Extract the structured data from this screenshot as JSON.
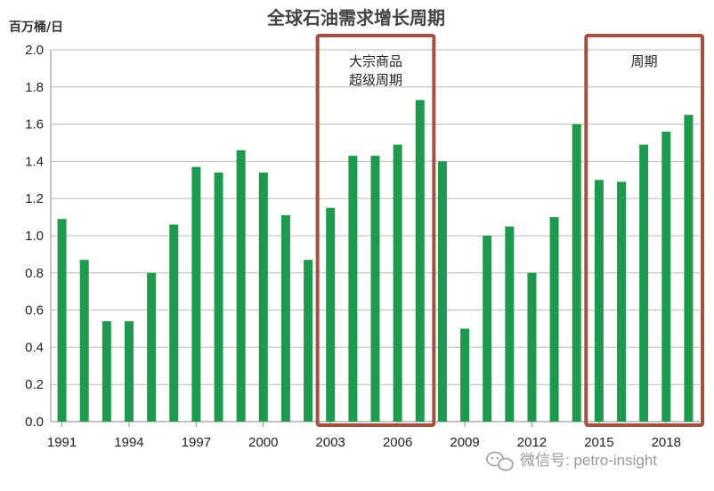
{
  "chart_data": {
    "type": "bar",
    "title": "全球石油需求增长周期",
    "ylabel": "百万桶/日",
    "xlabel": "",
    "ylim": [
      0,
      2.0
    ],
    "yticks": [
      "0.0",
      "0.2",
      "0.4",
      "0.6",
      "0.8",
      "1.0",
      "1.2",
      "1.4",
      "1.6",
      "1.8",
      "2.0"
    ],
    "xtick_labels": [
      "1991",
      "1994",
      "1997",
      "2000",
      "2003",
      "2006",
      "2009",
      "2012",
      "2015",
      "2018"
    ],
    "categories": [
      "1991",
      "1992",
      "1993",
      "1994",
      "1995",
      "1996",
      "1997",
      "1998",
      "1999",
      "2000",
      "2001",
      "2002",
      "2003",
      "2004",
      "2005",
      "2006",
      "2007",
      "2008",
      "2009",
      "2010",
      "2011",
      "2012",
      "2013",
      "2014",
      "2015",
      "2016",
      "2017",
      "2018",
      "2019"
    ],
    "values": [
      1.09,
      0.87,
      0.54,
      0.54,
      0.8,
      1.06,
      1.37,
      1.34,
      1.46,
      1.34,
      1.11,
      0.87,
      1.15,
      1.43,
      1.43,
      1.49,
      1.73,
      1.4,
      0.5,
      1.0,
      1.05,
      0.8,
      1.1,
      1.6,
      1.3,
      1.29,
      1.49,
      1.56,
      1.65
    ],
    "grid": "horizontal",
    "bar_color": "#1e9a4f",
    "annotations": [
      {
        "text_lines": [
          "大宗商品",
          "超级周期"
        ],
        "from": "2003",
        "to": "2007",
        "box_color": "#a2523f"
      },
      {
        "text_lines": [
          "周期"
        ],
        "from": "2015",
        "to": "2019",
        "box_color": "#a2523f"
      }
    ]
  },
  "watermark": {
    "text": "微信号: petro-insight",
    "icon": "wechat-icon"
  }
}
